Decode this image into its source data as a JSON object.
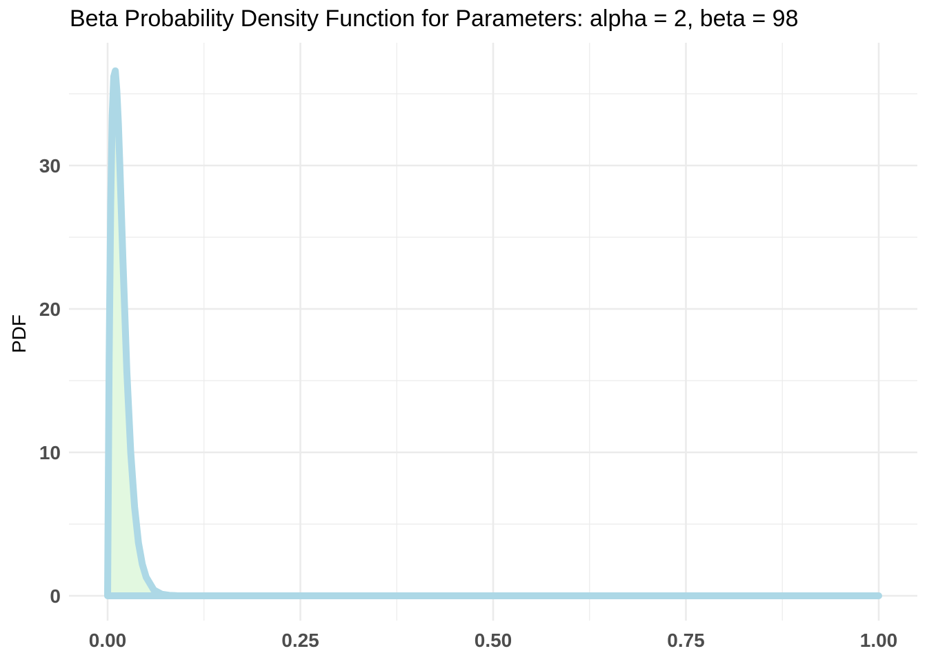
{
  "chart_data": {
    "type": "area",
    "title": "Beta Probability Density Function for Parameters: alpha = 2, beta = 98",
    "xlabel": "",
    "ylabel": "PDF",
    "distribution": {
      "family": "beta",
      "alpha": 2,
      "beta": 98
    },
    "xlim": [
      0,
      1
    ],
    "ylim": [
      0,
      36.6
    ],
    "x_ticks": [
      0,
      0.25,
      0.5,
      0.75,
      1
    ],
    "x_tick_labels": [
      "0.00",
      "0.25",
      "0.50",
      "0.75",
      "1.00"
    ],
    "y_ticks": [
      0,
      10,
      20,
      30
    ],
    "y_tick_labels": [
      "0",
      "10",
      "20",
      "30"
    ],
    "grid": true,
    "series": [
      {
        "x": [
          0,
          0.002,
          0.004,
          0.006,
          0.008,
          0.01,
          0.012,
          0.014,
          0.016,
          0.018,
          0.02,
          0.025,
          0.03,
          0.035,
          0.04,
          0.045,
          0.05,
          0.06,
          0.07,
          0.08,
          0.09,
          0.1,
          0.12,
          0.15,
          0.2,
          0.3,
          0.5,
          0.75,
          1
        ],
        "y": [
          0,
          16.5,
          27.3,
          33.5,
          36.2,
          36.6,
          35.2,
          32.9,
          29.8,
          26.5,
          23.2,
          15.6,
          10.0,
          6.2,
          3.7,
          2.2,
          1.3,
          0.4,
          0.11,
          0.03,
          0.008,
          0.002,
          0.0001,
          0,
          0,
          0,
          0,
          0,
          0
        ]
      }
    ],
    "colors": {
      "line": "#add8e6",
      "fill": "#e2f8e0",
      "grid": "#ebebeb"
    }
  }
}
